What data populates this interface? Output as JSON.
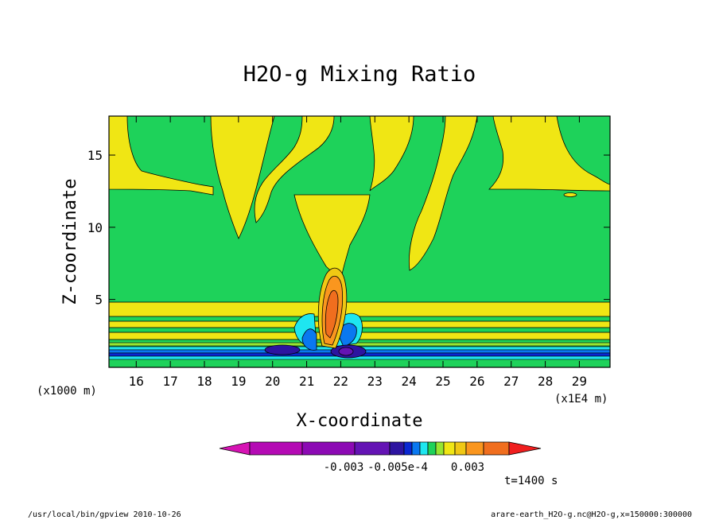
{
  "chart_data": {
    "type": "heatmap",
    "title": "H2O-g Mixing Ratio",
    "xlabel": "X-coordinate",
    "ylabel": "Z-coordinate",
    "x_unit_label": "(x1E4 m)",
    "y_unit_label": "(x1000 m)",
    "xlim": [
      15.2,
      29.9
    ],
    "ylim": [
      0.3,
      17.7
    ],
    "x_ticks": [
      "16",
      "17",
      "18",
      "19",
      "20",
      "21",
      "22",
      "23",
      "24",
      "25",
      "26",
      "27",
      "28",
      "29"
    ],
    "y_ticks": [
      "5",
      "10",
      "15"
    ],
    "colorbar": {
      "colors": [
        "#d613b4",
        "#b40ab4",
        "#8c0ab4",
        "#6414b4",
        "#2d14a0",
        "#0a28d2",
        "#0a78f0",
        "#1ee6f0",
        "#1ed25a",
        "#96e632",
        "#f0e614",
        "#f0c814",
        "#fa961e",
        "#f06e1e",
        "#f01e1e"
      ],
      "labels": [
        "-0.003",
        "-0.005e-4",
        "0.003"
      ]
    },
    "time_label": "t=1400 s",
    "footer_left": "/usr/local/bin/gpview  2010-10-26",
    "footer_right": "arare-earth_H2O-g.nc@H2O-g,x=150000:300000"
  }
}
